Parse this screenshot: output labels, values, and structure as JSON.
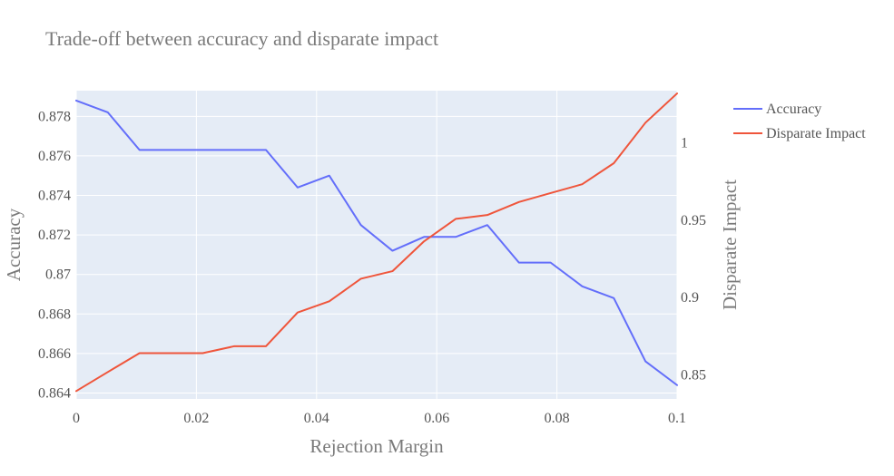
{
  "chart_data": {
    "type": "line",
    "title": "Trade-off between accuracy and disparate impact",
    "xlabel": "Rejection Margin",
    "ylabel": "Accuracy",
    "y2label": "Disparate Impact",
    "xlim": [
      0,
      0.1
    ],
    "ylim": [
      0.8637,
      0.8793
    ],
    "y2lim": [
      0.8344,
      1.0337
    ],
    "x_ticks": [
      0,
      0.02,
      0.04,
      0.06,
      0.08,
      0.1
    ],
    "x_tick_labels": [
      "0",
      "0.02",
      "0.04",
      "0.06",
      "0.08",
      "0.1"
    ],
    "y_ticks": [
      0.864,
      0.866,
      0.868,
      0.87,
      0.872,
      0.874,
      0.876,
      0.878
    ],
    "y_tick_labels": [
      "0.864",
      "0.866",
      "0.868",
      "0.87",
      "0.872",
      "0.874",
      "0.876",
      "0.878"
    ],
    "y2_ticks": [
      0.85,
      0.9,
      0.95,
      1.0
    ],
    "y2_tick_labels": [
      "0.85",
      "0.9",
      "0.95",
      "1"
    ],
    "grid": true,
    "legend_position": "top-right",
    "x": [
      0,
      0.00526,
      0.01053,
      0.01579,
      0.02105,
      0.02632,
      0.03158,
      0.03684,
      0.04211,
      0.04737,
      0.05263,
      0.05789,
      0.06316,
      0.06842,
      0.07368,
      0.07895,
      0.08421,
      0.08947,
      0.09474,
      0.1
    ],
    "series": [
      {
        "name": "Accuracy",
        "axis": "y",
        "color": "#636efa",
        "values": [
          0.8788,
          0.8782,
          0.8763,
          0.8763,
          0.8763,
          0.8763,
          0.8763,
          0.8744,
          0.875,
          0.8725,
          0.8712,
          0.8719,
          0.8719,
          0.8725,
          0.8706,
          0.8706,
          0.8694,
          0.8688,
          0.8656,
          0.8644
        ]
      },
      {
        "name": "Disparate Impact",
        "axis": "y2",
        "color": "#ef553b",
        "values": [
          0.8395,
          0.8518,
          0.864,
          0.864,
          0.864,
          0.8685,
          0.8685,
          0.8903,
          0.8975,
          0.9121,
          0.917,
          0.9363,
          0.9508,
          0.9533,
          0.9617,
          0.9675,
          0.9732,
          0.9868,
          1.013,
          1.0319
        ]
      }
    ]
  }
}
